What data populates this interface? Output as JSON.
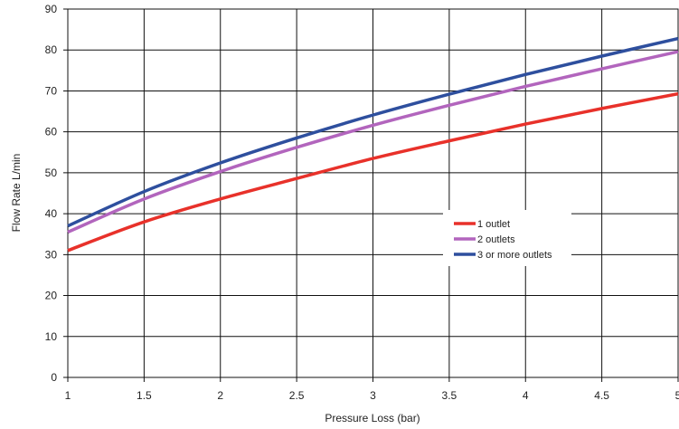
{
  "chart_data": {
    "type": "line",
    "xlabel": "Pressure Loss (bar)",
    "ylabel": "Flow Rate L/min",
    "xlim": [
      1,
      5
    ],
    "ylim": [
      0,
      90
    ],
    "x_ticks": [
      1,
      1.5,
      2,
      2.5,
      3,
      3.5,
      4,
      4.5,
      5
    ],
    "x_tick_labels": [
      "1",
      "1.5",
      "2",
      "2.5",
      "3",
      "3.5",
      "4",
      "4.5",
      "5"
    ],
    "y_ticks": [
      0,
      10,
      20,
      30,
      40,
      50,
      60,
      70,
      80,
      90
    ],
    "y_tick_labels": [
      "0",
      "10",
      "20",
      "30",
      "40",
      "50",
      "60",
      "70",
      "80",
      "90"
    ],
    "grid": true,
    "legend_position": "center-right",
    "x": [
      1,
      1.5,
      2,
      2.5,
      3,
      3.5,
      4,
      4.5,
      5
    ],
    "series": [
      {
        "name": "1 outlet",
        "color": "#e8312a",
        "values": [
          31,
          38,
          43.6,
          48.6,
          53.5,
          57.8,
          61.9,
          65.7,
          69.3
        ]
      },
      {
        "name": "2 outlets",
        "color": "#b265bd",
        "values": [
          35.5,
          43.6,
          50.3,
          56.2,
          61.6,
          66.5,
          71.1,
          75.4,
          79.6
        ]
      },
      {
        "name": "3 or more outlets",
        "color": "#2e4f9e",
        "values": [
          37,
          45.4,
          52.4,
          58.5,
          64.1,
          69.2,
          74,
          78.5,
          82.8
        ]
      }
    ]
  }
}
